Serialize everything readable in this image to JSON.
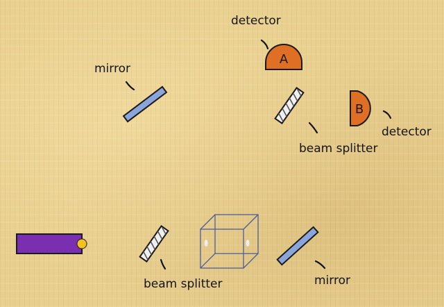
{
  "labels": {
    "detector_a": "detector",
    "detector_b": "detector",
    "mirror_top": "mirror",
    "mirror_bottom": "mirror",
    "splitter_top": "beam splitter",
    "splitter_bottom": "beam splitter"
  },
  "detectors": {
    "a": "A",
    "b": "B"
  },
  "colors": {
    "mirror": "#8aa4dc",
    "detector": "#e06f26",
    "laser": "#7a2fb0",
    "laser_aperture": "#f4c21a",
    "splitter": "#f0f0f0",
    "cube": "#4a5f9a"
  }
}
